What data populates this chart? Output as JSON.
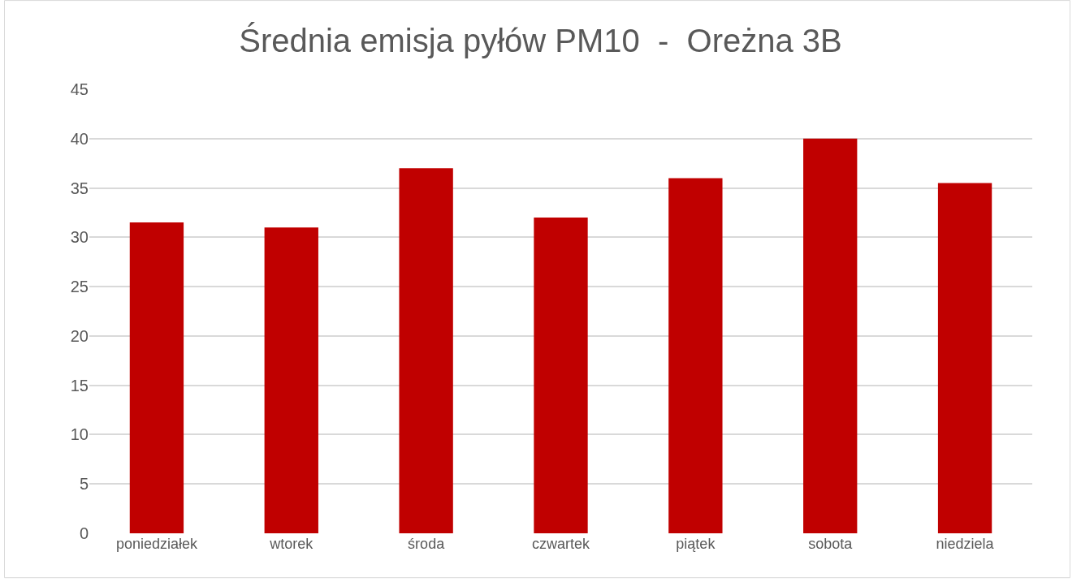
{
  "chart_data": {
    "type": "bar",
    "title": "Średnia emisja pyłów PM10  -  Oreżna 3B",
    "categories": [
      "poniedziałek",
      "wtorek",
      "środa",
      "czwartek",
      "piątek",
      "sobota",
      "niedziela"
    ],
    "values": [
      31.5,
      31,
      37,
      32,
      36,
      40,
      35.5
    ],
    "color": "#c00000",
    "ylim": [
      0,
      45
    ],
    "yticks": [
      0,
      5,
      10,
      15,
      20,
      25,
      30,
      35,
      40,
      45
    ],
    "grid": "y",
    "legend": false
  }
}
